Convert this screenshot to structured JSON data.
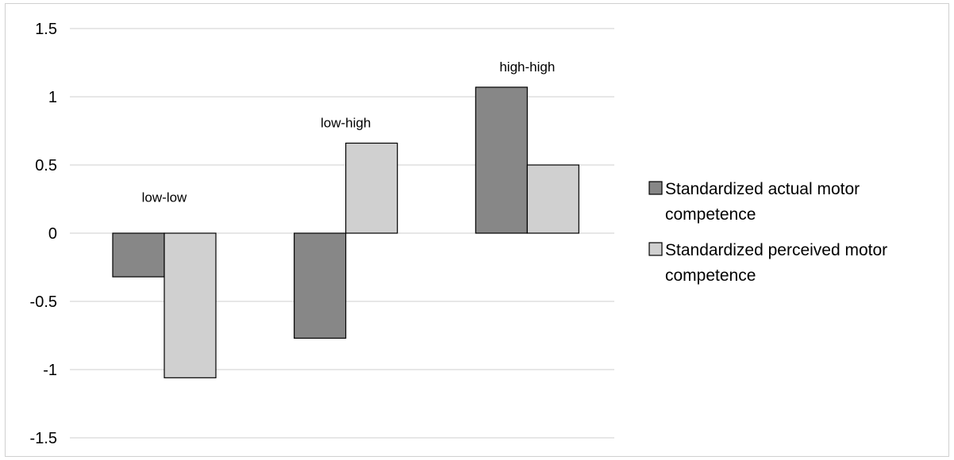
{
  "chart_data": {
    "type": "bar",
    "title": "",
    "xlabel": "",
    "ylabel": "",
    "ylim": [
      -1.5,
      1.5
    ],
    "yticks": [
      1.5,
      1,
      0.5,
      0,
      -0.5,
      -1,
      -1.5
    ],
    "ytick_labels": [
      "1.5",
      "1",
      "0.5",
      "0",
      "-0.5",
      "-1",
      "-1.5"
    ],
    "categories": [
      "low-low",
      "low-high",
      "high-high"
    ],
    "series": [
      {
        "name_lines": [
          "Standardized actual motor",
          "competence"
        ],
        "values": [
          -0.32,
          -0.77,
          1.07
        ],
        "color": "#878787"
      },
      {
        "name_lines": [
          "Standardized perceived motor",
          "competence"
        ],
        "values": [
          -1.06,
          0.66,
          0.5
        ],
        "color": "#d0d0d0"
      }
    ],
    "grid": true,
    "legend_position": "right"
  }
}
